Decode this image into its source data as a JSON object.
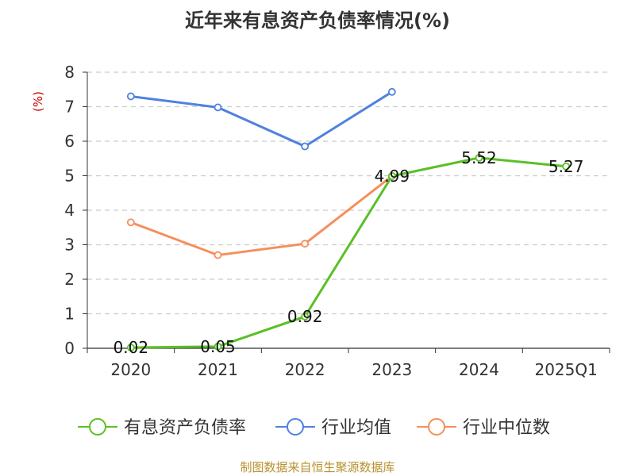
{
  "chart_data": {
    "type": "line",
    "title": "近年来有息资产负债率情况(%)",
    "ylabel": "(%)",
    "xlabel": "",
    "categories": [
      "2020",
      "2021",
      "2022",
      "2023",
      "2024",
      "2025Q1"
    ],
    "ylim": [
      0,
      8
    ],
    "yticks": [
      "0",
      "1",
      "2",
      "3",
      "4",
      "5",
      "6",
      "7",
      "8"
    ],
    "grid": true,
    "legend_position": "bottom",
    "series": [
      {
        "name": "有息资产负债率",
        "color": "#5ac026",
        "values": [
          0.02,
          0.05,
          0.92,
          4.99,
          5.52,
          5.27
        ],
        "labels": [
          "0.02",
          "0.05",
          "0.92",
          "4.99",
          "5.52",
          "5.27"
        ]
      },
      {
        "name": "行业均值",
        "color": "#4f81e0",
        "values": [
          7.3,
          6.98,
          5.85,
          7.43,
          null,
          null
        ]
      },
      {
        "name": "行业中位数",
        "color": "#f58f5b",
        "values": [
          3.65,
          2.7,
          3.03,
          4.99,
          null,
          null
        ]
      }
    ]
  },
  "footer": {
    "source": "制图数据来自恒生聚源数据库"
  }
}
